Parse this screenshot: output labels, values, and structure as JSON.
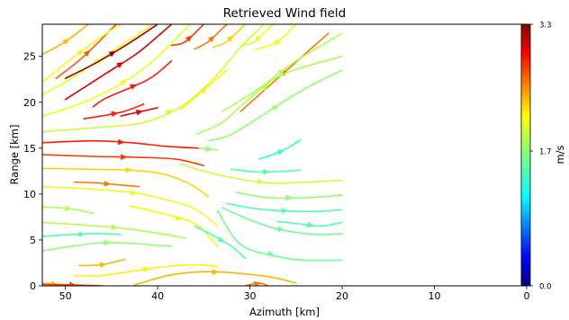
{
  "chart_data": {
    "type": "streamplot",
    "title": "Retrieved Wind field",
    "xlabel": "Azimuth [km]",
    "ylabel": "Range [km]",
    "xlim": [
      52.5,
      0
    ],
    "ylim": [
      0,
      28.5
    ],
    "x_ticks": [
      50,
      40,
      30,
      20,
      10,
      0
    ],
    "y_ticks": [
      0,
      5,
      10,
      15,
      20,
      25
    ],
    "grid": false,
    "colorbar": {
      "label": "m/s",
      "colormap": "jet",
      "range": [
        0.0,
        3.3
      ],
      "ticks": [
        0.0,
        1.7,
        3.3
      ],
      "tick_labels": [
        "0.0",
        "1.7",
        "3.3"
      ]
    },
    "streamlines": [
      {
        "speed": 2.3,
        "points": [
          [
            52.5,
            25.2
          ],
          [
            50,
            26.6
          ],
          [
            47.5,
            28.5
          ]
        ]
      },
      {
        "speed": 2.6,
        "points": [
          [
            51,
            22.6
          ],
          [
            48,
            25
          ],
          [
            44.5,
            28.5
          ]
        ]
      },
      {
        "speed": 2.0,
        "points": [
          [
            52.5,
            22.2
          ],
          [
            49,
            25
          ],
          [
            46,
            27.2
          ],
          [
            44,
            28.5
          ]
        ]
      },
      {
        "speed": 2.0,
        "points": [
          [
            52.5,
            20.8
          ],
          [
            49.5,
            22.5
          ],
          [
            46.5,
            24.5
          ],
          [
            43,
            26.8
          ],
          [
            40.5,
            28.5
          ]
        ]
      },
      {
        "speed": 3.2,
        "points": [
          [
            50,
            22.6
          ],
          [
            46.5,
            24.4
          ],
          [
            43,
            26.5
          ],
          [
            40,
            28.5
          ]
        ]
      },
      {
        "speed": 3.0,
        "points": [
          [
            50,
            20.3
          ],
          [
            45.5,
            23.2
          ],
          [
            42,
            25.5
          ],
          [
            38.5,
            28.5
          ]
        ]
      },
      {
        "speed": 2.0,
        "points": [
          [
            52.5,
            18.5
          ],
          [
            48.5,
            19.8
          ],
          [
            44,
            22
          ],
          [
            40.5,
            24.5
          ],
          [
            36.5,
            28.5
          ]
        ]
      },
      {
        "speed": 2.8,
        "points": [
          [
            47,
            19.5
          ],
          [
            45.5,
            20.5
          ],
          [
            41,
            22.5
          ],
          [
            38.5,
            24.5
          ]
        ]
      },
      {
        "speed": 2.8,
        "points": [
          [
            48,
            18.2
          ],
          [
            44,
            18.9
          ],
          [
            41.5,
            19.8
          ]
        ]
      },
      {
        "speed": 3.0,
        "points": [
          [
            44,
            18.5
          ],
          [
            40,
            19.4
          ]
        ]
      },
      {
        "speed": 2.7,
        "points": [
          [
            38.5,
            26.2
          ],
          [
            37,
            26.6
          ],
          [
            35,
            28.5
          ]
        ]
      },
      {
        "speed": 2.5,
        "points": [
          [
            36,
            25.8
          ],
          [
            34.5,
            26.6
          ],
          [
            32.5,
            28.5
          ]
        ]
      },
      {
        "speed": 2.2,
        "points": [
          [
            34,
            26
          ],
          [
            32.5,
            26.6
          ],
          [
            30.5,
            28.5
          ]
        ]
      },
      {
        "speed": 2.0,
        "points": [
          [
            31,
            26.2
          ],
          [
            29.5,
            26.6
          ],
          [
            27.5,
            28.5
          ]
        ]
      },
      {
        "speed": 2.0,
        "points": [
          [
            29.5,
            25.7
          ],
          [
            27,
            26.6
          ],
          [
            25,
            28.5
          ]
        ]
      },
      {
        "speed": 1.9,
        "points": [
          [
            52.5,
            16.8
          ],
          [
            46,
            17.3
          ],
          [
            41.5,
            17.8
          ],
          [
            37.5,
            19.5
          ],
          [
            34,
            22.5
          ],
          [
            31,
            26
          ],
          [
            28.5,
            28.5
          ]
        ]
      },
      {
        "speed": 2.1,
        "points": [
          [
            37.5,
            19.2
          ],
          [
            34.8,
            21.5
          ],
          [
            32.5,
            23.5
          ]
        ]
      },
      {
        "speed": 2.5,
        "points": [
          [
            31,
            19
          ],
          [
            28.8,
            21
          ],
          [
            26,
            23.5
          ],
          [
            21.5,
            27.5
          ]
        ]
      },
      {
        "speed": 1.8,
        "points": [
          [
            33,
            19
          ],
          [
            29,
            21.5
          ],
          [
            25,
            24.5
          ],
          [
            20,
            27.5
          ]
        ]
      },
      {
        "speed": 1.8,
        "points": [
          [
            35.8,
            16.5
          ],
          [
            33,
            17.8
          ],
          [
            30.5,
            20
          ],
          [
            26.5,
            23
          ],
          [
            20,
            25
          ]
        ]
      },
      {
        "speed": 1.7,
        "points": [
          [
            34.5,
            15.8
          ],
          [
            32,
            16.5
          ],
          [
            28,
            19
          ],
          [
            24,
            21.5
          ],
          [
            20,
            23.5
          ]
        ]
      },
      {
        "speed": 2.8,
        "points": [
          [
            52.5,
            15.6
          ],
          [
            47,
            15.8
          ],
          [
            43,
            15.6
          ],
          [
            39,
            15.2
          ],
          [
            35.5,
            15
          ]
        ]
      },
      {
        "speed": 1.7,
        "points": [
          [
            35.5,
            15
          ],
          [
            33.5,
            14.8
          ]
        ]
      },
      {
        "speed": 2.7,
        "points": [
          [
            52.5,
            14.3
          ],
          [
            47,
            14.1
          ],
          [
            42,
            14
          ],
          [
            38,
            13.8
          ],
          [
            35,
            13.1
          ]
        ]
      },
      {
        "speed": 1.9,
        "points": [
          [
            37.5,
            13.3
          ],
          [
            35,
            12.5
          ],
          [
            32,
            11.8
          ],
          [
            28,
            11.2
          ],
          [
            24,
            11.3
          ],
          [
            20,
            11.5
          ]
        ]
      },
      {
        "speed": 2.2,
        "points": [
          [
            52.5,
            12.8
          ],
          [
            47,
            12.7
          ],
          [
            43,
            12.6
          ],
          [
            39.5,
            12.2
          ],
          [
            36.5,
            11.1
          ],
          [
            34.5,
            9.7
          ]
        ]
      },
      {
        "speed": 1.5,
        "points": [
          [
            32,
            12.7
          ],
          [
            29,
            12.4
          ],
          [
            26,
            12.5
          ],
          [
            24.5,
            12.6
          ]
        ]
      },
      {
        "speed": 1.4,
        "points": [
          [
            29,
            13.8
          ],
          [
            26.5,
            14.7
          ],
          [
            24.5,
            15.9
          ]
        ]
      },
      {
        "speed": 2.5,
        "points": [
          [
            49,
            11.3
          ],
          [
            46.5,
            11.2
          ],
          [
            42,
            10.8
          ]
        ]
      },
      {
        "speed": 2.0,
        "points": [
          [
            52.5,
            10.8
          ],
          [
            48,
            10.6
          ],
          [
            43,
            10.2
          ],
          [
            39.5,
            9.5
          ],
          [
            36,
            8.4
          ],
          [
            33.5,
            6.5
          ]
        ]
      },
      {
        "speed": 1.8,
        "points": [
          [
            52.5,
            8.6
          ],
          [
            49.5,
            8.4
          ],
          [
            47,
            7.9
          ]
        ]
      },
      {
        "speed": 2.0,
        "points": [
          [
            43,
            8.7
          ],
          [
            40,
            8
          ],
          [
            36,
            6.8
          ],
          [
            33.5,
            4.3
          ]
        ]
      },
      {
        "speed": 1.7,
        "points": [
          [
            31.5,
            10.2
          ],
          [
            28,
            9.6
          ],
          [
            24,
            9.6
          ],
          [
            20,
            9.9
          ]
        ]
      },
      {
        "speed": 1.5,
        "points": [
          [
            32.5,
            9
          ],
          [
            30,
            8.5
          ],
          [
            27,
            8.2
          ],
          [
            23,
            8.1
          ],
          [
            20,
            8.3
          ]
        ]
      },
      {
        "speed": 1.5,
        "points": [
          [
            27,
            7
          ],
          [
            25,
            6.8
          ],
          [
            22.5,
            6.5
          ],
          [
            20,
            6.9
          ]
        ]
      },
      {
        "speed": 1.6,
        "points": [
          [
            33,
            8.5
          ],
          [
            30,
            7.2
          ],
          [
            27,
            6.2
          ],
          [
            23,
            5.6
          ],
          [
            20,
            5.7
          ]
        ]
      },
      {
        "speed": 1.6,
        "points": [
          [
            33.5,
            8.2
          ],
          [
            31,
            4.5
          ],
          [
            27,
            3.2
          ],
          [
            24,
            2.8
          ],
          [
            20,
            2.8
          ]
        ]
      },
      {
        "speed": 1.8,
        "points": [
          [
            52.5,
            6.9
          ],
          [
            49,
            6.7
          ],
          [
            45,
            6.4
          ],
          [
            41,
            5.9
          ],
          [
            37,
            5.2
          ]
        ]
      },
      {
        "speed": 1.5,
        "points": [
          [
            52.5,
            5.4
          ],
          [
            49,
            5.6
          ],
          [
            46.5,
            5.7
          ],
          [
            44,
            5.6
          ]
        ]
      },
      {
        "speed": 1.7,
        "points": [
          [
            52.5,
            3.8
          ],
          [
            50,
            4.2
          ],
          [
            46,
            4.7
          ],
          [
            42.5,
            4.6
          ],
          [
            38.5,
            4.3
          ]
        ]
      },
      {
        "speed": 1.5,
        "points": [
          [
            36,
            6.5
          ],
          [
            34,
            5.5
          ],
          [
            32,
            4.3
          ],
          [
            30.5,
            3
          ]
        ]
      },
      {
        "speed": 2.3,
        "points": [
          [
            48.5,
            2.2
          ],
          [
            46,
            2.3
          ],
          [
            43.5,
            2.9
          ]
        ]
      },
      {
        "speed": 2.1,
        "points": [
          [
            49,
            1.1
          ],
          [
            46.5,
            1.1
          ],
          [
            44,
            1.4
          ],
          [
            40,
            2
          ],
          [
            36,
            2.3
          ],
          [
            33.5,
            2.1
          ]
        ]
      },
      {
        "speed": 2.3,
        "points": [
          [
            42.5,
            0.1
          ],
          [
            39,
            1.1
          ],
          [
            36,
            1.5
          ],
          [
            33,
            1.5
          ],
          [
            28,
            1
          ],
          [
            25,
            0.3
          ]
        ]
      },
      {
        "speed": 2.3,
        "points": [
          [
            52.5,
            0.3
          ],
          [
            50,
            0.1
          ]
        ]
      },
      {
        "speed": 2.7,
        "points": [
          [
            52.5,
            0.15
          ],
          [
            49,
            0.1
          ],
          [
            46,
            0
          ]
        ]
      },
      {
        "speed": 2.5,
        "points": [
          [
            30.5,
            0
          ],
          [
            29,
            0.3
          ],
          [
            28,
            0
          ]
        ]
      }
    ]
  }
}
